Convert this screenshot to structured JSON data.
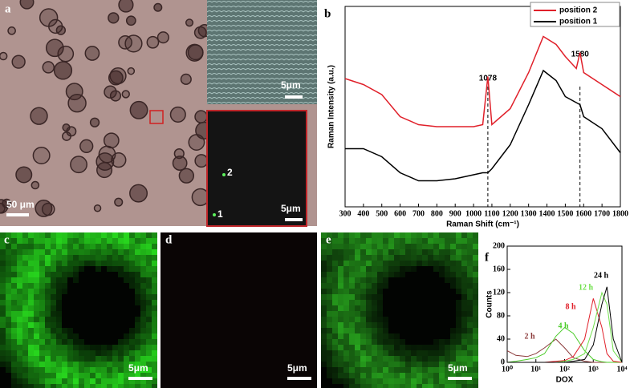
{
  "panels": {
    "a": {
      "label": "a",
      "scale": "50 μm",
      "inset_scale": "5μm",
      "zoom_scale": "5μm",
      "points": [
        "2",
        "1"
      ]
    },
    "c": {
      "label": "c",
      "scale": "5μm"
    },
    "d": {
      "label": "d",
      "scale": "5μm"
    },
    "e": {
      "label": "e",
      "scale": "5μm"
    }
  },
  "chart_data": [
    {
      "type": "line",
      "panel_label": "b",
      "xlabel": "Raman Shift (cm⁻¹)",
      "ylabel": "Raman Intensity (a.u.)",
      "x": [
        300,
        400,
        500,
        600,
        700,
        800,
        900,
        1000,
        1050,
        1078,
        1100,
        1200,
        1300,
        1380,
        1450,
        1500,
        1560,
        1580,
        1600,
        1700,
        1800
      ],
      "series": [
        {
          "name": "position 2",
          "color": "#e0202a",
          "values": [
            64,
            61,
            56,
            45,
            41,
            40,
            40,
            40,
            41,
            65,
            41,
            49,
            67,
            85,
            81,
            75,
            69,
            77,
            67,
            61,
            55
          ]
        },
        {
          "name": "position 1",
          "color": "#000000",
          "values": [
            29,
            29,
            25,
            17,
            13,
            13,
            14,
            16,
            17,
            17,
            19,
            31,
            51,
            68,
            63,
            55,
            52,
            51,
            45,
            39,
            27
          ]
        }
      ],
      "xlim": [
        300,
        1800
      ],
      "ylim": [
        0,
        100
      ],
      "xticks": [
        300,
        400,
        500,
        600,
        700,
        800,
        900,
        1000,
        1100,
        1200,
        1300,
        1400,
        1500,
        1600,
        1700,
        1800
      ],
      "annotations": [
        1078,
        1580
      ],
      "legend": "upper right"
    },
    {
      "type": "line",
      "panel_label": "f",
      "xlabel": "DOX",
      "ylabel": "Counts",
      "xscale": "log",
      "x": [
        1,
        2,
        5,
        10,
        20,
        50,
        100,
        200,
        500,
        1000,
        2000,
        3000,
        5000,
        10000
      ],
      "series": [
        {
          "name": "2 h",
          "color": "#8b3a3a",
          "values": [
            20,
            12,
            10,
            15,
            25,
            40,
            25,
            8,
            2,
            0,
            0,
            0,
            0,
            0
          ]
        },
        {
          "name": "4 h",
          "color": "#4ccc2a",
          "values": [
            0,
            2,
            5,
            8,
            15,
            45,
            60,
            50,
            20,
            5,
            1,
            0,
            0,
            0
          ]
        },
        {
          "name": "8 h",
          "color": "#e0202a",
          "values": [
            0,
            0,
            0,
            0,
            0,
            2,
            3,
            10,
            40,
            110,
            60,
            15,
            2,
            0
          ]
        },
        {
          "name": "12 h",
          "color": "#6fe04a",
          "values": [
            0,
            0,
            0,
            0,
            0,
            0,
            2,
            5,
            15,
            60,
            120,
            100,
            20,
            0
          ]
        },
        {
          "name": "24 h",
          "color": "#000000",
          "values": [
            0,
            0,
            0,
            0,
            0,
            0,
            0,
            2,
            5,
            30,
            100,
            130,
            40,
            0
          ]
        }
      ],
      "xlim": [
        1,
        10000
      ],
      "ylim": [
        0,
        200
      ],
      "xticks": [
        {
          "value": 1,
          "label": "10⁰"
        },
        {
          "value": 10,
          "label": "10¹"
        },
        {
          "value": 100,
          "label": "10²"
        },
        {
          "value": 1000,
          "label": "10³"
        },
        {
          "value": 10000,
          "label": "10⁴"
        }
      ],
      "yticks": [
        0,
        40,
        80,
        120,
        160,
        200
      ]
    }
  ]
}
